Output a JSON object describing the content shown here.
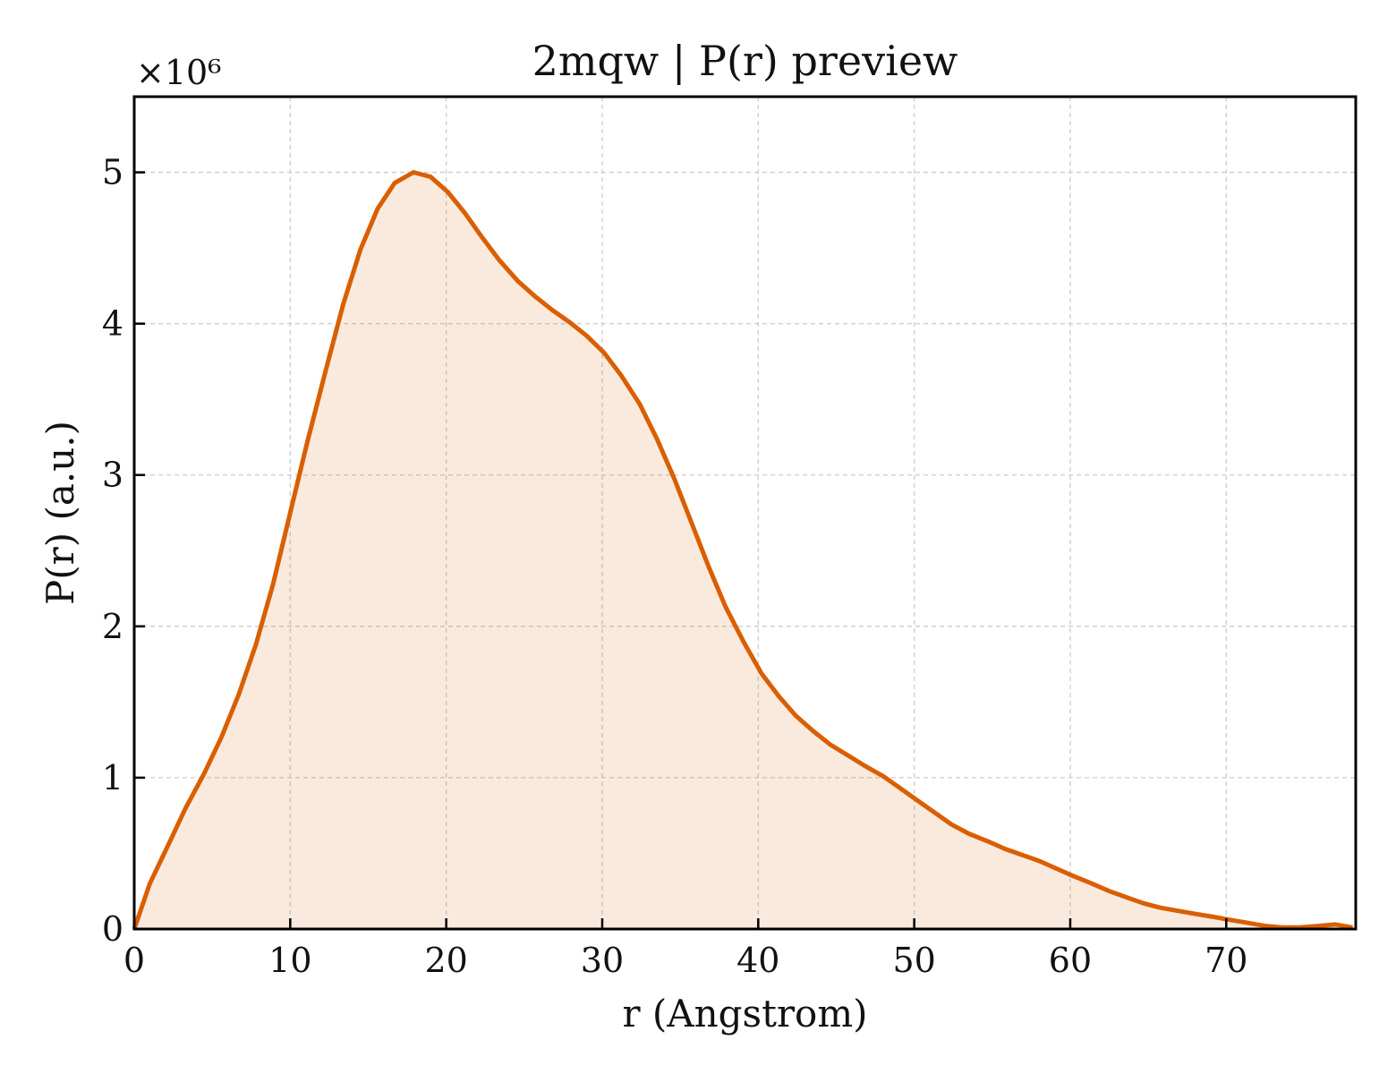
{
  "chart_data": {
    "type": "area",
    "title": "2mqw | P(r) preview",
    "xlabel": "r (Angstrom)",
    "ylabel": "P(r) (a.u.)",
    "y_multiplier_label": "×10⁶",
    "xlim": [
      0,
      78.3
    ],
    "ylim": [
      0,
      5.5
    ],
    "x_ticks": [
      0,
      10,
      20,
      30,
      40,
      50,
      60,
      70
    ],
    "y_ticks": [
      0,
      1,
      2,
      3,
      4,
      5
    ],
    "grid": true,
    "series": [
      {
        "color": "#d95f02",
        "fill_color": "#d95f02",
        "fill_opacity": 0.13,
        "x": [
          0,
          1,
          2.2,
          3.3,
          4.5,
          5.6,
          6.7,
          7.8,
          8.9,
          10,
          11.1,
          12.3,
          13.4,
          14.5,
          15.6,
          16.7,
          17.9,
          19,
          20.1,
          21.2,
          22.3,
          23.4,
          24.6,
          25.7,
          26.8,
          27.9,
          29,
          30.1,
          31.2,
          32.4,
          33.5,
          34.6,
          35.7,
          36.8,
          37.9,
          39.1,
          40.2,
          41.3,
          42.4,
          43.5,
          44.6,
          45.7,
          46.8,
          48,
          49.1,
          50.2,
          51.3,
          52.4,
          53.5,
          54.7,
          55.8,
          56.9,
          58,
          59.1,
          60.2,
          61.4,
          62.5,
          63.6,
          64.7,
          65.8,
          66.9,
          68,
          69.2,
          70.3,
          71.4,
          72.5,
          73.6,
          74.7,
          75.9,
          77,
          78.1
        ],
        "y": [
          0,
          0.3,
          0.56,
          0.8,
          1.03,
          1.27,
          1.55,
          1.88,
          2.28,
          2.75,
          3.22,
          3.7,
          4.13,
          4.49,
          4.76,
          4.93,
          5.0,
          4.97,
          4.87,
          4.73,
          4.57,
          4.42,
          4.28,
          4.18,
          4.09,
          4.01,
          3.92,
          3.81,
          3.66,
          3.47,
          3.24,
          2.98,
          2.69,
          2.4,
          2.13,
          1.89,
          1.69,
          1.54,
          1.41,
          1.31,
          1.22,
          1.15,
          1.08,
          1.01,
          0.93,
          0.85,
          0.77,
          0.69,
          0.63,
          0.58,
          0.53,
          0.49,
          0.45,
          0.4,
          0.35,
          0.3,
          0.25,
          0.21,
          0.17,
          0.14,
          0.12,
          0.1,
          0.08,
          0.06,
          0.04,
          0.02,
          0.01,
          0.01,
          0.02,
          0.03,
          0.01
        ]
      }
    ]
  }
}
